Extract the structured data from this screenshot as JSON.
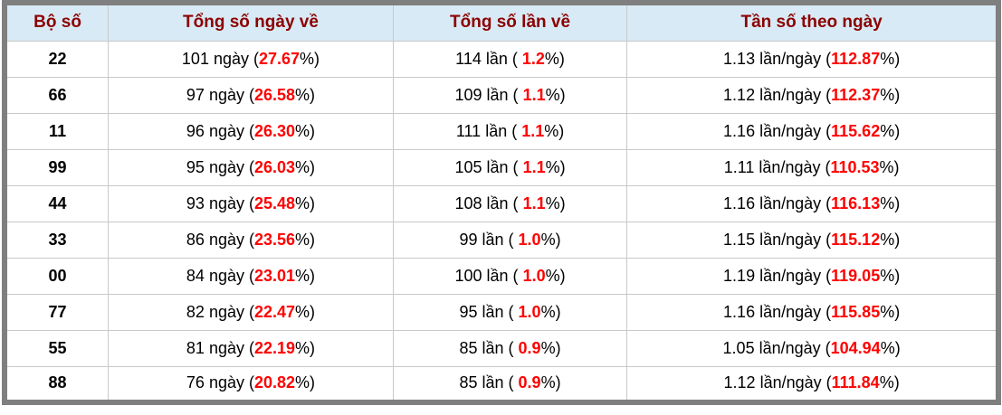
{
  "colors": {
    "header_bg": "#d8eaf5",
    "header_text": "#8b0000",
    "highlight_red": "#ff0000",
    "body_text": "#000000",
    "outer_border": "#7f7f7f",
    "cell_border": "#c9c9c9"
  },
  "table": {
    "columns": [
      "Bộ số",
      "Tổng số ngày về",
      "Tổng số lần về",
      "Tần số theo ngày"
    ],
    "rows": [
      {
        "pair": "22",
        "days_pre": "101 ngày (",
        "days_val": "27.67",
        "days_post": "%)",
        "times_pre": "114 lần ( ",
        "times_val": "1.2",
        "times_post": "%)",
        "freq_pre": "1.13 lần/ngày (",
        "freq_val": "112.87",
        "freq_post": "%)"
      },
      {
        "pair": "66",
        "days_pre": "97 ngày (",
        "days_val": "26.58",
        "days_post": "%)",
        "times_pre": "109 lần ( ",
        "times_val": "1.1",
        "times_post": "%)",
        "freq_pre": "1.12 lần/ngày (",
        "freq_val": "112.37",
        "freq_post": "%)"
      },
      {
        "pair": "11",
        "days_pre": "96 ngày (",
        "days_val": "26.30",
        "days_post": "%)",
        "times_pre": "111 lần ( ",
        "times_val": "1.1",
        "times_post": "%)",
        "freq_pre": "1.16 lần/ngày (",
        "freq_val": "115.62",
        "freq_post": "%)"
      },
      {
        "pair": "99",
        "days_pre": "95 ngày (",
        "days_val": "26.03",
        "days_post": "%)",
        "times_pre": "105 lần ( ",
        "times_val": "1.1",
        "times_post": "%)",
        "freq_pre": "1.11 lần/ngày (",
        "freq_val": "110.53",
        "freq_post": "%)"
      },
      {
        "pair": "44",
        "days_pre": "93 ngày (",
        "days_val": "25.48",
        "days_post": "%)",
        "times_pre": "108 lần ( ",
        "times_val": "1.1",
        "times_post": "%)",
        "freq_pre": "1.16 lần/ngày (",
        "freq_val": "116.13",
        "freq_post": "%)"
      },
      {
        "pair": "33",
        "days_pre": "86 ngày (",
        "days_val": "23.56",
        "days_post": "%)",
        "times_pre": "99 lần ( ",
        "times_val": "1.0",
        "times_post": "%)",
        "freq_pre": "1.15 lần/ngày (",
        "freq_val": "115.12",
        "freq_post": "%)"
      },
      {
        "pair": "00",
        "days_pre": "84 ngày (",
        "days_val": "23.01",
        "days_post": "%)",
        "times_pre": "100 lần ( ",
        "times_val": "1.0",
        "times_post": "%)",
        "freq_pre": "1.19 lần/ngày (",
        "freq_val": "119.05",
        "freq_post": "%)"
      },
      {
        "pair": "77",
        "days_pre": "82 ngày (",
        "days_val": "22.47",
        "days_post": "%)",
        "times_pre": "95 lần ( ",
        "times_val": "1.0",
        "times_post": "%)",
        "freq_pre": "1.16 lần/ngày (",
        "freq_val": "115.85",
        "freq_post": "%)"
      },
      {
        "pair": "55",
        "days_pre": "81 ngày (",
        "days_val": "22.19",
        "days_post": "%)",
        "times_pre": "85 lần ( ",
        "times_val": "0.9",
        "times_post": "%)",
        "freq_pre": "1.05 lần/ngày (",
        "freq_val": "104.94",
        "freq_post": "%)"
      },
      {
        "pair": "88",
        "days_pre": "76 ngày (",
        "days_val": "20.82",
        "days_post": "%)",
        "times_pre": "85 lần ( ",
        "times_val": "0.9",
        "times_post": "%)",
        "freq_pre": "1.12 lần/ngày (",
        "freq_val": "111.84",
        "freq_post": "%)"
      }
    ]
  }
}
